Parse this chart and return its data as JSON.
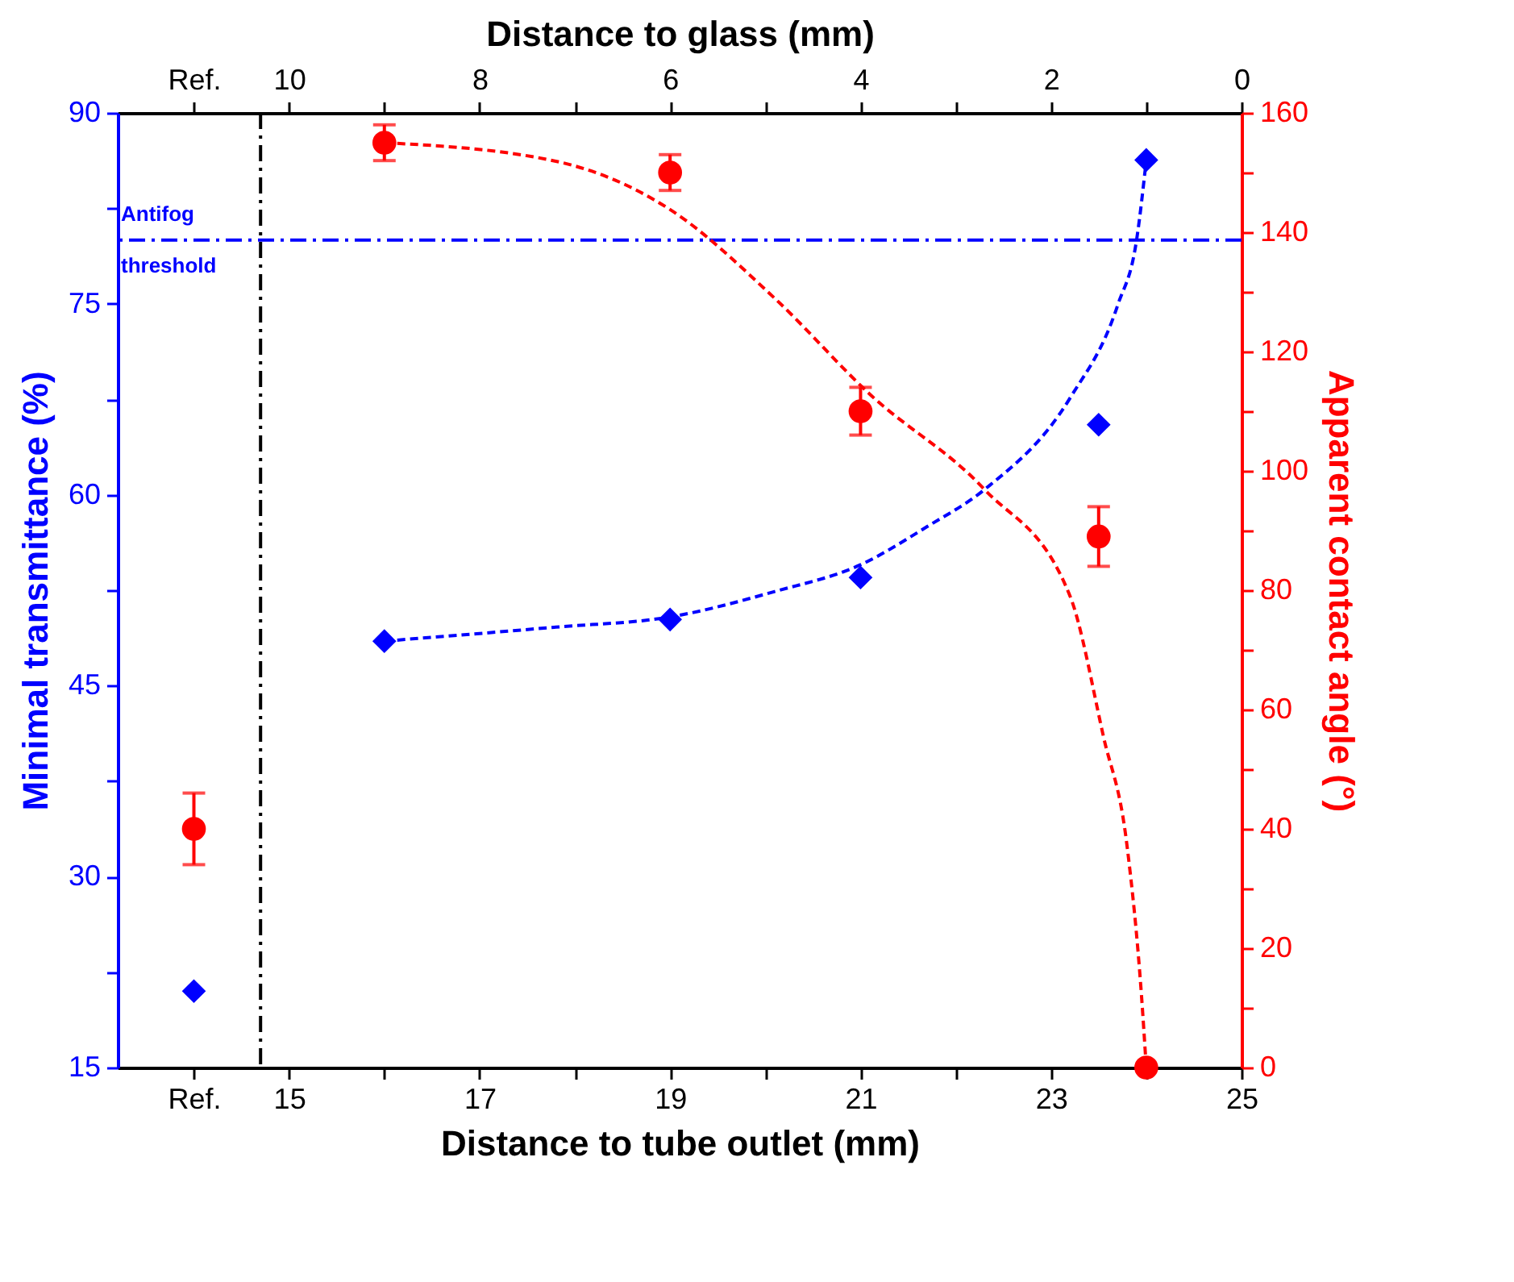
{
  "chart_data": {
    "type": "scatter",
    "xlabel": "Distance to tube outlet (mm)",
    "x2label": "Distance to glass (mm)",
    "ylabel": "Minimal transmittance (%)",
    "y2label": "Apparent contact angle (°)",
    "xlim": [
      13.2,
      25
    ],
    "x2lim": [
      11.8,
      0
    ],
    "ylim": [
      15,
      90
    ],
    "y2lim": [
      0,
      160
    ],
    "xticks": [
      {
        "value": 14,
        "label": "Ref."
      },
      15,
      {
        "value": 16,
        "label": null
      },
      17,
      {
        "value": 18,
        "label": null
      },
      19,
      {
        "value": 20,
        "label": null
      },
      21,
      {
        "value": 22,
        "label": null
      },
      23,
      {
        "value": 24,
        "label": null
      },
      25
    ],
    "x2ticks": [
      {
        "value": 11,
        "label": "Ref."
      },
      10,
      {
        "value": 9,
        "label": null
      },
      8,
      {
        "value": 7,
        "label": null
      },
      6,
      {
        "value": 5,
        "label": null
      },
      4,
      {
        "value": 3,
        "label": null
      },
      2,
      {
        "value": 1,
        "label": null
      },
      0
    ],
    "yticks": [
      15,
      {
        "value": 22.5,
        "label": null
      },
      30,
      {
        "value": 37.5,
        "label": null
      },
      45,
      {
        "value": 52.5,
        "label": null
      },
      60,
      {
        "value": 67.5,
        "label": null
      },
      75,
      {
        "value": 82.5,
        "label": null
      },
      90
    ],
    "y2ticks": [
      0,
      {
        "value": 10,
        "label": null
      },
      20,
      {
        "value": 30,
        "label": null
      },
      40,
      {
        "value": 50,
        "label": null
      },
      60,
      {
        "value": 70,
        "label": null
      },
      80,
      {
        "value": 90,
        "label": null
      },
      100,
      {
        "value": 110,
        "label": null
      },
      120,
      {
        "value": 130,
        "label": null
      },
      140,
      {
        "value": 150,
        "label": null
      },
      160
    ],
    "grid": false,
    "ref_lines": [
      {
        "axis": "y",
        "value": 80,
        "label": "Antifog threshold",
        "color": "#0000ff",
        "line_style": "dashdot"
      },
      {
        "axis": "x",
        "value": 14.7,
        "color": "#000000",
        "line_style": "dashdot"
      }
    ],
    "series": [
      {
        "marker": "diamond",
        "color": "#0000ff",
        "x": [
          14,
          16,
          19,
          21,
          23.5,
          24
        ],
        "values": [
          21,
          48.5,
          50.2,
          53.5,
          65.5,
          86.3
        ]
      },
      {
        "type": "line",
        "marker": "none",
        "line_style": "dashed",
        "color": "#0000ff",
        "x": [
          16,
          17,
          17.8,
          19,
          20.1,
          21,
          21.7,
          22.3,
          23.2,
          23.7,
          23.9,
          24
        ],
        "values": [
          48.5,
          49.1,
          49.6,
          50.4,
          52.4,
          54.5,
          57.5,
          60.4,
          67.6,
          74.9,
          80.1,
          86.3
        ]
      },
      {
        "axis": "y2",
        "marker": "circle",
        "color": "#ff0000",
        "x": [
          14,
          16,
          19,
          21,
          23.5,
          24
        ],
        "values": [
          40,
          155,
          150,
          110,
          89,
          0
        ],
        "errors": [
          6,
          3,
          3,
          4,
          5,
          null
        ]
      },
      {
        "type": "line",
        "axis": "y2",
        "marker": "none",
        "line_style": "dashed",
        "color": "#ff0000",
        "x": [
          16,
          17.8,
          19,
          20.1,
          21.1,
          22.3,
          23.2,
          23.55,
          23.8,
          23.95,
          24
        ],
        "values": [
          155,
          151.9,
          143.8,
          128.9,
          112.8,
          96.9,
          79,
          55.5,
          36.9,
          12,
          0
        ]
      }
    ]
  }
}
